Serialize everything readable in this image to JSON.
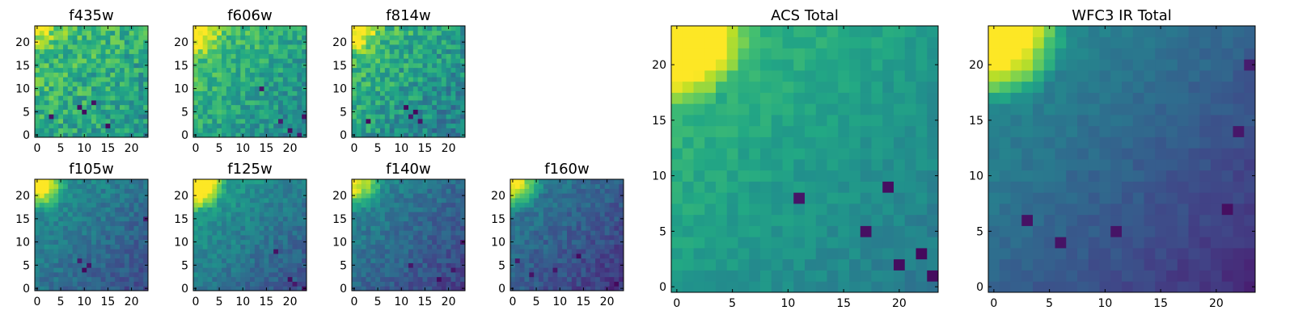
{
  "chart_data": [
    {
      "type": "heatmap",
      "title": "f435w",
      "rows": 24,
      "cols": 24,
      "x_ticks": [
        "0",
        "5",
        "10",
        "15",
        "20"
      ],
      "y_ticks": [
        "0",
        "5",
        "10",
        "15",
        "20"
      ],
      "colormap": "viridis",
      "pattern": {
        "seed": 11,
        "bright_corner": 0.25,
        "base": 0.62,
        "slope": 0.2,
        "noise": 0.32,
        "dark_spots": [
          [
            9,
            6
          ],
          [
            10,
            5
          ],
          [
            12,
            7
          ],
          [
            3,
            4
          ],
          [
            15,
            2
          ]
        ]
      }
    },
    {
      "type": "heatmap",
      "title": "f606w",
      "rows": 24,
      "cols": 24,
      "x_ticks": [
        "0",
        "5",
        "10",
        "15",
        "20"
      ],
      "y_ticks": [
        "0",
        "5",
        "10",
        "15",
        "20"
      ],
      "colormap": "viridis",
      "pattern": {
        "seed": 23,
        "bright_corner": 0.45,
        "base": 0.6,
        "slope": 0.3,
        "noise": 0.26,
        "dark_spots": [
          [
            20,
            1
          ],
          [
            22,
            0
          ],
          [
            18,
            3
          ],
          [
            23,
            4
          ],
          [
            14,
            10
          ]
        ]
      }
    },
    {
      "type": "heatmap",
      "title": "f814w",
      "rows": 24,
      "cols": 24,
      "x_ticks": [
        "0",
        "5",
        "10",
        "15",
        "20"
      ],
      "y_ticks": [
        "0",
        "5",
        "10",
        "15",
        "20"
      ],
      "colormap": "viridis",
      "pattern": {
        "seed": 37,
        "bright_corner": 0.45,
        "base": 0.56,
        "slope": 0.32,
        "noise": 0.3,
        "dark_spots": [
          [
            11,
            6
          ],
          [
            12,
            4
          ],
          [
            13,
            5
          ],
          [
            14,
            3
          ],
          [
            3,
            3
          ]
        ]
      }
    },
    {
      "type": "heatmap",
      "title": "f105w",
      "rows": 24,
      "cols": 24,
      "x_ticks": [
        "0",
        "5",
        "10",
        "15",
        "20"
      ],
      "y_ticks": [
        "0",
        "5",
        "10",
        "15",
        "20"
      ],
      "colormap": "viridis",
      "pattern": {
        "seed": 41,
        "bright_corner": 0.75,
        "base": 0.38,
        "slope": 0.32,
        "noise": 0.16,
        "dark_spots": [
          [
            9,
            6
          ],
          [
            10,
            4
          ],
          [
            11,
            5
          ],
          [
            23,
            15
          ]
        ]
      }
    },
    {
      "type": "heatmap",
      "title": "f125w",
      "rows": 24,
      "cols": 24,
      "x_ticks": [
        "0",
        "5",
        "10",
        "15",
        "20"
      ],
      "y_ticks": [
        "0",
        "5",
        "10",
        "15",
        "20"
      ],
      "colormap": "viridis",
      "pattern": {
        "seed": 53,
        "bright_corner": 1.0,
        "base": 0.42,
        "slope": 0.36,
        "noise": 0.16,
        "dark_spots": [
          [
            20,
            2
          ],
          [
            21,
            1
          ],
          [
            23,
            0
          ],
          [
            17,
            8
          ]
        ]
      }
    },
    {
      "type": "heatmap",
      "title": "f140w",
      "rows": 24,
      "cols": 24,
      "x_ticks": [
        "0",
        "5",
        "10",
        "15",
        "20"
      ],
      "y_ticks": [
        "0",
        "5",
        "10",
        "15",
        "20"
      ],
      "colormap": "viridis",
      "pattern": {
        "seed": 67,
        "bright_corner": 0.6,
        "base": 0.34,
        "slope": 0.32,
        "noise": 0.16,
        "dark_spots": [
          [
            12,
            5
          ],
          [
            18,
            2
          ],
          [
            21,
            4
          ],
          [
            23,
            10
          ]
        ]
      }
    },
    {
      "type": "heatmap",
      "title": "f160w",
      "rows": 24,
      "cols": 24,
      "x_ticks": [
        "0",
        "5",
        "10",
        "15",
        "20"
      ],
      "y_ticks": [
        "0",
        "5",
        "10",
        "15",
        "20"
      ],
      "colormap": "viridis",
      "pattern": {
        "seed": 79,
        "bright_corner": 0.7,
        "base": 0.3,
        "slope": 0.3,
        "noise": 0.16,
        "dark_spots": [
          [
            1,
            6
          ],
          [
            4,
            3
          ],
          [
            9,
            4
          ],
          [
            14,
            7
          ],
          [
            22,
            1
          ]
        ]
      }
    },
    {
      "type": "heatmap",
      "title": "ACS Total",
      "rows": 24,
      "cols": 24,
      "x_ticks": [
        "0",
        "5",
        "10",
        "15",
        "20"
      ],
      "y_ticks": [
        "0",
        "5",
        "10",
        "15",
        "20"
      ],
      "colormap": "viridis",
      "pattern": {
        "seed": 97,
        "bright_corner": 1.0,
        "base": 0.55,
        "slope": 0.3,
        "noise": 0.1,
        "dark_spots": [
          [
            11,
            8
          ],
          [
            19,
            9
          ],
          [
            17,
            5
          ],
          [
            22,
            3
          ],
          [
            23,
            1
          ],
          [
            20,
            2
          ]
        ]
      }
    },
    {
      "type": "heatmap",
      "title": "WFC3 IR Total",
      "rows": 24,
      "cols": 24,
      "x_ticks": [
        "0",
        "5",
        "10",
        "15",
        "20"
      ],
      "y_ticks": [
        "0",
        "5",
        "10",
        "15",
        "20"
      ],
      "colormap": "viridis",
      "pattern": {
        "seed": 109,
        "bright_corner": 1.0,
        "base": 0.32,
        "slope": 0.4,
        "noise": 0.07,
        "dark_spots": [
          [
            3,
            6
          ],
          [
            6,
            4
          ],
          [
            11,
            5
          ],
          [
            21,
            7
          ],
          [
            22,
            14
          ],
          [
            23,
            20
          ]
        ]
      }
    }
  ]
}
